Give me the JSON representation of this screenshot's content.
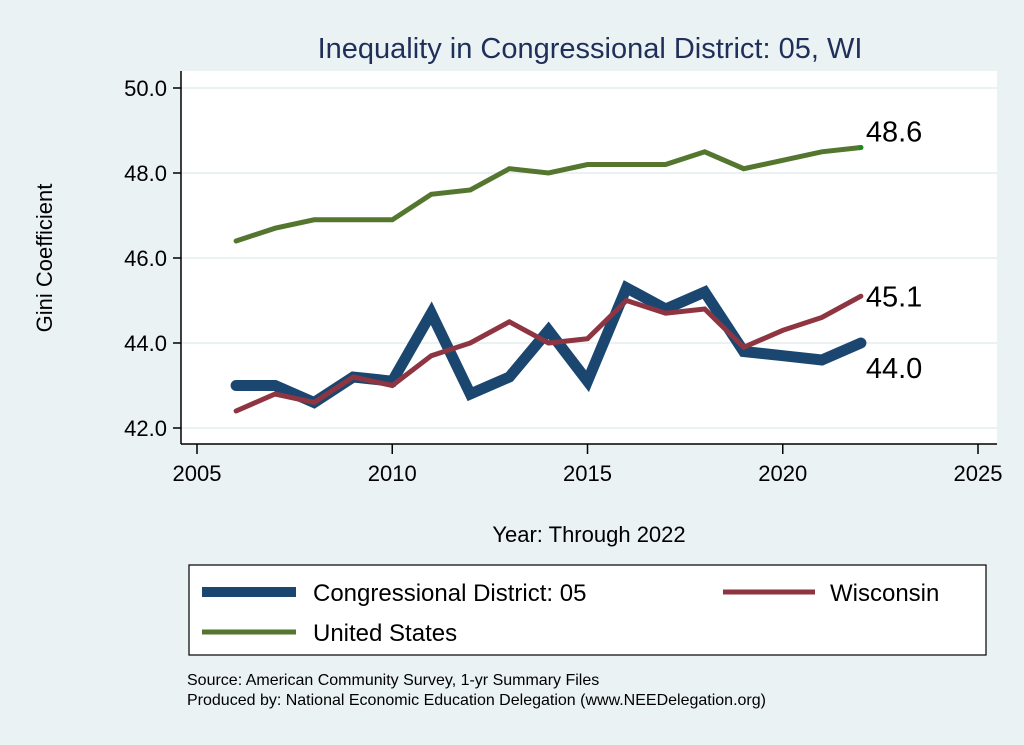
{
  "chart_data": {
    "type": "line",
    "title": "Inequality in Congressional District:  05, WI",
    "xlabel": "Year: Through 2022",
    "ylabel": "Gini Coefficient",
    "xlim": [
      2005,
      2025
    ],
    "ylim": [
      42,
      50
    ],
    "xticks": [
      2005,
      2010,
      2015,
      2020,
      2025
    ],
    "xtick_labels": [
      "2005",
      "2010",
      "2015",
      "2020",
      "2025"
    ],
    "yticks": [
      42,
      44,
      46,
      48,
      50
    ],
    "ytick_labels": [
      "42.0",
      "44.0",
      "46.0",
      "48.0",
      "50.0"
    ],
    "grid": true,
    "legend_position": "bottom",
    "x": [
      2006,
      2007,
      2008,
      2009,
      2010,
      2011,
      2012,
      2013,
      2014,
      2015,
      2016,
      2017,
      2018,
      2019,
      2020,
      2021,
      2022
    ],
    "series": [
      {
        "name": "Congressional District:  05",
        "color": "#1B4670",
        "values": [
          43.0,
          43.0,
          42.6,
          43.2,
          43.1,
          44.7,
          42.8,
          43.2,
          44.3,
          43.1,
          45.3,
          44.8,
          45.2,
          43.8,
          43.7,
          43.6,
          44.0
        ],
        "end_label": "44.0"
      },
      {
        "name": "Wisconsin",
        "color": "#8E3541",
        "values": [
          42.4,
          42.8,
          42.6,
          43.2,
          43.0,
          43.7,
          44.0,
          44.5,
          44.0,
          44.1,
          45.0,
          44.7,
          44.8,
          43.9,
          44.3,
          44.6,
          45.1
        ],
        "end_label": "45.1"
      },
      {
        "name": "United States",
        "color": "#55762F",
        "values": [
          46.4,
          46.7,
          46.9,
          46.9,
          46.9,
          47.5,
          47.6,
          48.1,
          48.0,
          48.2,
          48.2,
          48.2,
          48.5,
          48.1,
          48.3,
          48.5,
          48.6
        ],
        "end_label": "48.6"
      }
    ],
    "notes": [
      "Source: American Community Survey, 1-yr Summary Files",
      "Produced by: National Economic Education Delegation (www.NEEDelegation.org)"
    ]
  },
  "colors": {
    "background": "#EAF2F3",
    "plot_background": "#FFFFFF",
    "gridline": "#EAF2F3",
    "title": "#1F2F5A"
  }
}
